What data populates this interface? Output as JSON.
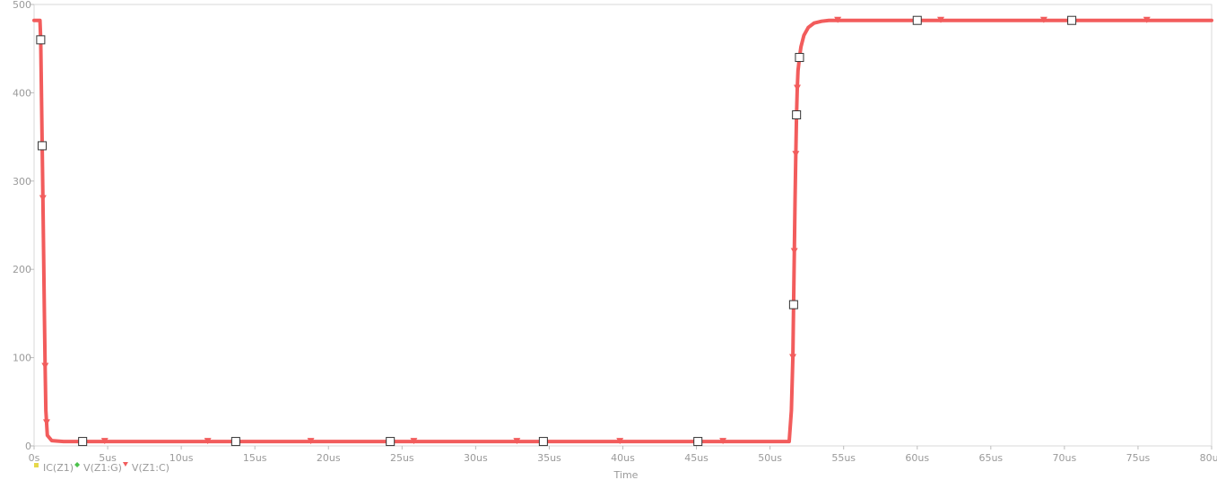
{
  "chart_data": {
    "type": "line",
    "xlabel": "Time",
    "ylabel": "",
    "xlim": [
      0,
      80
    ],
    "ylim": [
      0,
      500
    ],
    "x_ticks": [
      0,
      5,
      10,
      15,
      20,
      25,
      30,
      35,
      40,
      45,
      50,
      55,
      60,
      65,
      70,
      75,
      80
    ],
    "x_tick_labels": [
      "0s",
      "5us",
      "10us",
      "15us",
      "20us",
      "25us",
      "30us",
      "35us",
      "40us",
      "45us",
      "50us",
      "55us",
      "60us",
      "65us",
      "70us",
      "75us",
      "80us"
    ],
    "y_ticks": [
      0,
      100,
      200,
      300,
      400,
      500
    ],
    "y_tick_labels": [
      "0",
      "100",
      "200",
      "300",
      "400",
      "500"
    ],
    "grid": false,
    "legend_position": "bottom-left",
    "series": [
      {
        "name": "IC(Z1)",
        "color": "#e6d84a",
        "marker": "square",
        "visible_trace": false,
        "x": [],
        "y": []
      },
      {
        "name": "V(Z1:G)",
        "color": "#4cc24c",
        "marker": "diamond",
        "visible_trace": false,
        "x": [],
        "y": []
      },
      {
        "name": "V(Z1:C)",
        "color": "#f25c5c",
        "marker": "triangle-down",
        "visible_trace": true,
        "x": [
          0.0,
          0.4,
          0.45,
          0.5,
          0.55,
          0.6,
          0.65,
          0.7,
          0.75,
          0.8,
          0.9,
          1.2,
          2.0,
          10.0,
          20.0,
          30.0,
          40.0,
          50.0,
          51.3,
          51.45,
          51.55,
          51.6,
          51.65,
          51.7,
          51.75,
          51.8,
          51.85,
          51.9,
          52.0,
          52.1,
          52.3,
          52.6,
          53.0,
          53.5,
          54.0,
          60.0,
          70.0,
          80.0
        ],
        "y": [
          482,
          482,
          460,
          400,
          340,
          280,
          215,
          150,
          90,
          40,
          12,
          6,
          5,
          5,
          5,
          5,
          5,
          5,
          5,
          40,
          100,
          160,
          220,
          280,
          330,
          375,
          405,
          425,
          440,
          452,
          465,
          474,
          479,
          481,
          482,
          482,
          482,
          482
        ],
        "square_markers_x": [
          0.45,
          0.55,
          3.3,
          13.7,
          24.2,
          34.6,
          45.1,
          51.6,
          51.8,
          52.0,
          60.0,
          70.5
        ],
        "triangle_markers_x": [
          0.45,
          0.55,
          0.6,
          0.75,
          0.85,
          4.8,
          11.8,
          18.8,
          25.8,
          32.8,
          39.8,
          46.8,
          51.55,
          51.65,
          51.75,
          51.85,
          54.6,
          61.6,
          68.6,
          75.6
        ]
      }
    ]
  }
}
